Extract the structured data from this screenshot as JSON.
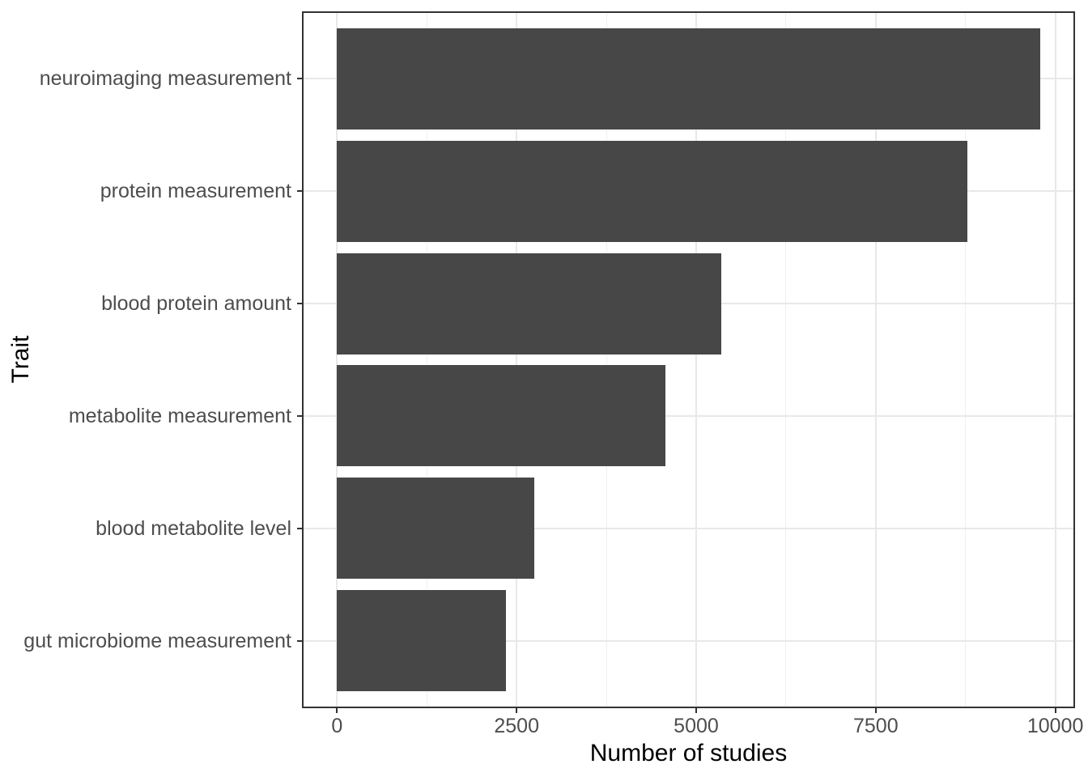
{
  "figure": {
    "background": "#FFFFFF"
  },
  "chart_data": {
    "type": "bar",
    "orientation": "horizontal",
    "title": "",
    "xlabel": "Number of studies",
    "ylabel": "Trait",
    "categories": [
      "neuroimaging measurement",
      "protein measurement",
      "blood protein amount",
      "metabolite measurement",
      "blood metabolite level",
      "gut microbiome measurement"
    ],
    "values": [
      9786,
      8774,
      5350,
      4567,
      2749,
      2356
    ],
    "x_ticks": [
      0,
      2500,
      5000,
      7500,
      10000
    ],
    "x_tick_labels": [
      "0",
      "2500",
      "5000",
      "7500",
      "10000"
    ],
    "x_minor_ticks": [
      1250,
      3750,
      6250,
      8750
    ],
    "xlim": [
      -489,
      10275
    ],
    "grid": {
      "show": true,
      "major_color": "#E8E8E8",
      "minor_color": "#F0F0F0"
    },
    "legend": "none",
    "colors": {
      "bar_fill": "#474747",
      "panel_border": "#333333",
      "tick_mark": "#333333",
      "axis_text": "#4D4D4D",
      "axis_title": "#000000",
      "panel_background": "#FFFFFF"
    }
  }
}
